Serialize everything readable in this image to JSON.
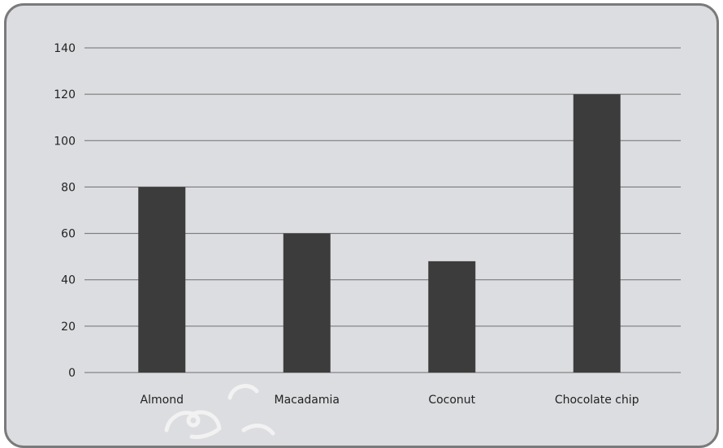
{
  "chart_data": {
    "type": "bar",
    "categories": [
      "Almond",
      "Macadamia",
      "Coconut",
      "Chocolate chip"
    ],
    "values": [
      80,
      60,
      48,
      120
    ],
    "title": "",
    "xlabel": "",
    "ylabel": "",
    "ylim": [
      0,
      140
    ],
    "yticks": [
      0,
      20,
      40,
      60,
      80,
      100,
      120,
      140
    ],
    "grid": true,
    "legend": "none",
    "colors": {
      "bar": "#3c3c3c",
      "background": "#dcdde0",
      "gridline": "#6e6e6e",
      "frame": "#7a7a7a"
    }
  }
}
